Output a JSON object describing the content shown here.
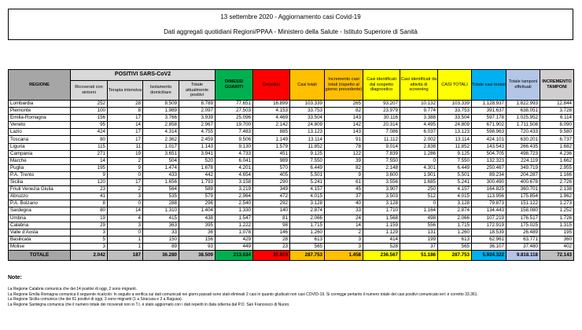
{
  "title": "13 settembre 2020 - Aggiornamento casi Covid-19",
  "subtitle": "Dati aggregati quotidiani Regioni/PPAA - Ministero della Salute - Istituto Superiore di Sanità",
  "headers": {
    "regione": "REGIONE",
    "positivi_group": "POSITIVI SARS-CoV2",
    "ricoverati": "Ricoverati con sintomi",
    "terapia": "Terapia intensiva",
    "isolamento": "Isolamento domiciliare",
    "totale_positivi": "Totale attualmente positivi",
    "dimessi": "DIMESSI GUARITI",
    "deceduti": "Deceduti",
    "casi_totali": "Casi totali",
    "incremento": "Incremento casi totali (rispetto al giorno precedente)",
    "sospetto": "Casi identificati dal sospetto diagnostico",
    "screening": "Casi identificati da attività di screening",
    "casi_totali2": "CASI TOTALI",
    "testati": "Totale casi testati",
    "tamponi": "Totale tamponi effettuati",
    "incr_tamponi": "INCREMENTO TAMPONI"
  },
  "rows": [
    [
      "Lombardia",
      "252",
      "28",
      "8.509",
      "8.789",
      "77.651",
      "16.899",
      "103.339",
      "265",
      "93.207",
      "10.132",
      "103.339",
      "1.128.937",
      "1.822.993",
      "12.844"
    ],
    [
      "Piemonte",
      "100",
      "8",
      "1.989",
      "2.097",
      "27.503",
      "4.153",
      "33.753",
      "82",
      "23.979",
      "9.774",
      "33.753",
      "391.637",
      "638.051",
      "3.728"
    ],
    [
      "Emilia-Romagna",
      "156",
      "17",
      "3.766",
      "3.939",
      "25.096",
      "4.469",
      "33.504",
      "143",
      "30.116",
      "3.388",
      "33.504",
      "597.178",
      "1.025.952",
      "6.114"
    ],
    [
      "Veneto",
      "95",
      "14",
      "2.858",
      "2.967",
      "19.700",
      "2.142",
      "24.809",
      "142",
      "20.314",
      "4.495",
      "24.809",
      "671.902",
      "1.711.508",
      "8.090"
    ],
    [
      "Lazio",
      "424",
      "17",
      "4.314",
      "4.755",
      "7.483",
      "885",
      "13.123",
      "143",
      "7.086",
      "6.037",
      "13.123",
      "598.963",
      "720.433",
      "9.580"
    ],
    [
      "Toscana",
      "80",
      "17",
      "2.362",
      "2.459",
      "9.506",
      "1.149",
      "13.114",
      "91",
      "11.112",
      "2.002",
      "13.114",
      "424.101",
      "630.201",
      "6.737"
    ],
    [
      "Liguria",
      "115",
      "11",
      "1.017",
      "1.143",
      "9.130",
      "1.579",
      "11.852",
      "78",
      "9.014",
      "2.838",
      "11.852",
      "143.543",
      "266.435",
      "1.682"
    ],
    [
      "Campania",
      "271",
      "19",
      "3.651",
      "3.941",
      "4.733",
      "451",
      "9.125",
      "122",
      "7.839",
      "1.286",
      "9.125",
      "504.705",
      "498.723",
      "4.236"
    ],
    [
      "Marche",
      "14",
      "2",
      "504",
      "520",
      "6.041",
      "989",
      "7.550",
      "39",
      "7.550",
      "0",
      "7.550",
      "132.323",
      "224.119",
      "1.662"
    ],
    [
      "Puglia",
      "195",
      "9",
      "1.474",
      "1.678",
      "4.201",
      "570",
      "6.449",
      "82",
      "2.148",
      "4.301",
      "6.449",
      "250.467",
      "349.719",
      "2.955"
    ],
    [
      "P.A. Trento",
      "9",
      "0",
      "433",
      "442",
      "4.654",
      "405",
      "5.501",
      "9",
      "3.600",
      "1.901",
      "5.501",
      "89.234",
      "204.287",
      "1.166"
    ],
    [
      "Sicilia",
      "120",
      "17",
      "1.656",
      "1.793",
      "3.158",
      "290",
      "5.241",
      "61",
      "3.556",
      "1.685",
      "5.241",
      "300.490",
      "400.678",
      "2.726"
    ],
    [
      "Friuli Venezia Giulia",
      "23",
      "2",
      "564",
      "589",
      "3.219",
      "349",
      "4.157",
      "45",
      "3.907",
      "250",
      "4.157",
      "164.825",
      "360.701",
      "2.138"
    ],
    [
      "Abruzzo",
      "41",
      "3",
      "535",
      "579",
      "2.964",
      "472",
      "4.015",
      "37",
      "3.503",
      "512",
      "4.015",
      "113.956",
      "175.854",
      "1.962"
    ],
    [
      "P.A. Bolzano",
      "8",
      "0",
      "288",
      "296",
      "2.540",
      "292",
      "3.128",
      "40",
      "3.128",
      "0",
      "3.128",
      "79.873",
      "151.122",
      "1.273"
    ],
    [
      "Sardegna",
      "80",
      "14",
      "1.310",
      "1.404",
      "1.330",
      "140",
      "2.874",
      "33",
      "1.710",
      "1.164",
      "2.874",
      "134.443",
      "158.080",
      "1.252"
    ],
    [
      "Umbria",
      "19",
      "4",
      "415",
      "438",
      "1.547",
      "81",
      "2.066",
      "24",
      "1.568",
      "498",
      "2.066",
      "107.219",
      "176.517",
      "1.726"
    ],
    [
      "Calabria",
      "29",
      "3",
      "363",
      "395",
      "1.222",
      "98",
      "1.715",
      "14",
      "1.159",
      "556",
      "1.715",
      "172.919",
      "175.025",
      "1.315"
    ],
    [
      "Valle d'Aosta",
      "3",
      "0",
      "33",
      "36",
      "1.078",
      "146",
      "1.260",
      "2",
      "1.129",
      "131",
      "1.260",
      "18.539",
      "26.489",
      "195"
    ],
    [
      "Basilicata",
      "5",
      "1",
      "150",
      "156",
      "429",
      "28",
      "613",
      "3",
      "414",
      "199",
      "613",
      "62.961",
      "63.771",
      "360"
    ],
    [
      "Molise",
      "3",
      "1",
      "89",
      "93",
      "449",
      "23",
      "565",
      "3",
      "528",
      "37",
      "565",
      "36.107",
      "37.480",
      "402"
    ]
  ],
  "totals": [
    "TOTALE",
    "2.042",
    "187",
    "36.280",
    "38.509",
    "213.634",
    "35.610",
    "287.753",
    "1.458",
    "236.567",
    "51.186",
    "287.753",
    "5.924.322",
    "9.818.118",
    "72.143"
  ],
  "notes": {
    "heading": "Note:",
    "lines": [
      "La Regione Calabria comunica che dei 14 positivi di oggi, 2 sono migranti.",
      "La Regione Emilia Romagna comunica il seguente ricalcolo: In seguito a verifica sui dati comunicati nei giorni passati sono stati eliminati 2 casi in quanto giudicati non casi COVID-19. Si corregge pertanto il numero totale dei casi positivi comunicato ieri: è corretto 33.361.",
      "La Regione Sicilia comunica che dei 61 positivi di oggi, 3 sono migranti (1 a Siracusa e 2 a Ragusa).",
      "La Regione Sardegna comunica che il numero totale dei ricoverati non in T.I. è stato aggiornato con i dati reperiti in data odierna dal P.O. San Francesco di Nuoro."
    ]
  }
}
